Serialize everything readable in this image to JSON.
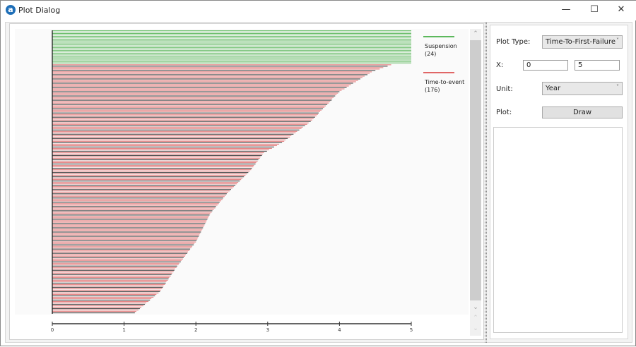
{
  "window": {
    "title": "Plot Dialog",
    "logo": "a",
    "minimize_icon": "minimize-icon",
    "maximize_icon": "maximize-icon",
    "close_icon": "close-icon"
  },
  "controls": {
    "plot_type_label": "Plot Type:",
    "plot_type_value": "Time-To-First-Failure",
    "x_label": "X:",
    "x_min": "0",
    "x_max": "5",
    "unit_label": "Unit:",
    "unit_value": "Year",
    "plot_label": "Plot:",
    "draw_button": "Draw"
  },
  "colors": {
    "suspension": "#5cb85c",
    "event": "#e06666",
    "axis": "#222222"
  },
  "chart_data": {
    "type": "bar",
    "orientation": "horizontal",
    "title": "",
    "xlabel": "",
    "ylabel": "",
    "xlim": [
      0,
      5
    ],
    "xticks": [
      "0",
      "1",
      "2",
      "3",
      "4",
      "5"
    ],
    "grid": false,
    "legend_position": "top-right",
    "legend": [
      {
        "name": "Suspension",
        "count": "(24)",
        "color": "#5cb85c"
      },
      {
        "name": "Time-to-event",
        "count": "(176)",
        "color": "#e06666"
      }
    ],
    "series": [
      {
        "name": "Suspension",
        "values": [
          5,
          5,
          5,
          5,
          5,
          5,
          5,
          5,
          5,
          5,
          5,
          5,
          5,
          5,
          5,
          5,
          5,
          5,
          5,
          5,
          5,
          5,
          5,
          5
        ]
      },
      {
        "name": "Time-to-event",
        "values": [
          4.72,
          4.67,
          4.61,
          4.56,
          4.5,
          4.45,
          4.42,
          4.39,
          4.35,
          4.32,
          4.29,
          4.26,
          4.23,
          4.19,
          4.16,
          4.13,
          4.1,
          4.07,
          4.03,
          4.0,
          3.98,
          3.96,
          3.94,
          3.92,
          3.9,
          3.89,
          3.87,
          3.85,
          3.83,
          3.81,
          3.79,
          3.77,
          3.75,
          3.73,
          3.71,
          3.7,
          3.68,
          3.66,
          3.64,
          3.62,
          3.6,
          3.57,
          3.55,
          3.52,
          3.49,
          3.47,
          3.44,
          3.41,
          3.39,
          3.36,
          3.33,
          3.31,
          3.28,
          3.25,
          3.23,
          3.2,
          3.16,
          3.13,
          3.09,
          3.06,
          3.02,
          2.99,
          2.95,
          2.93,
          2.92,
          2.9,
          2.89,
          2.87,
          2.86,
          2.84,
          2.83,
          2.81,
          2.8,
          2.78,
          2.77,
          2.75,
          2.73,
          2.71,
          2.69,
          2.67,
          2.65,
          2.63,
          2.61,
          2.59,
          2.57,
          2.55,
          2.53,
          2.51,
          2.49,
          2.47,
          2.45,
          2.43,
          2.42,
          2.4,
          2.38,
          2.37,
          2.35,
          2.33,
          2.32,
          2.3,
          2.28,
          2.27,
          2.25,
          2.23,
          2.22,
          2.2,
          2.19,
          2.18,
          2.17,
          2.16,
          2.15,
          2.14,
          2.13,
          2.12,
          2.11,
          2.1,
          2.09,
          2.08,
          2.07,
          2.06,
          2.05,
          2.04,
          2.03,
          2.02,
          2.01,
          2.0,
          1.98,
          1.97,
          1.95,
          1.94,
          1.92,
          1.91,
          1.89,
          1.88,
          1.86,
          1.85,
          1.83,
          1.82,
          1.8,
          1.79,
          1.77,
          1.76,
          1.74,
          1.73,
          1.71,
          1.7,
          1.69,
          1.67,
          1.66,
          1.65,
          1.63,
          1.62,
          1.61,
          1.59,
          1.58,
          1.57,
          1.55,
          1.54,
          1.53,
          1.51,
          1.5,
          1.48,
          1.45,
          1.43,
          1.41,
          1.38,
          1.36,
          1.34,
          1.31,
          1.29,
          1.27,
          1.24,
          1.22,
          1.2,
          1.17,
          1.15
        ]
      }
    ]
  }
}
